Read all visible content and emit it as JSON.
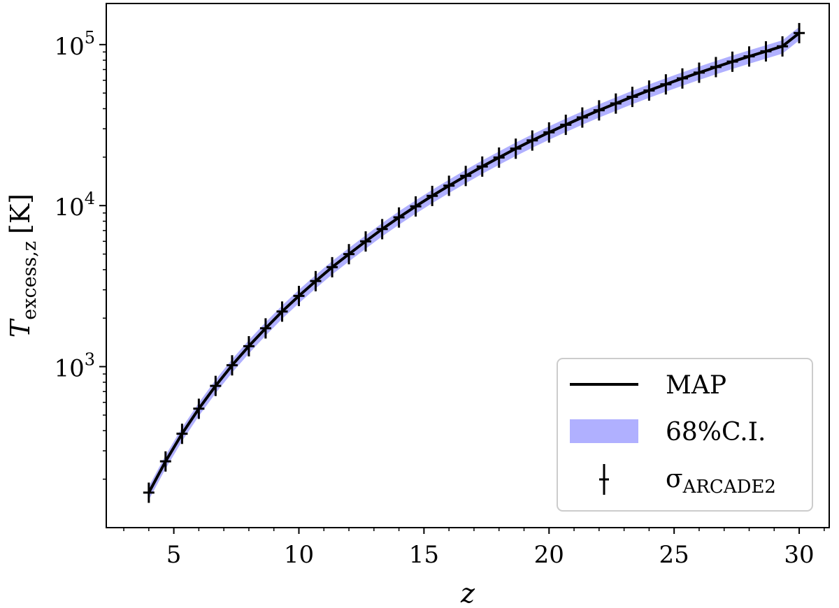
{
  "chart_data": {
    "type": "line",
    "xlabel": "z",
    "ylabel": {
      "main": "T",
      "subscript": "excess,z",
      "unit": "[K]"
    },
    "xlim": [
      2.3,
      31.2
    ],
    "ylim": [
      100,
      180000
    ],
    "yscale": "log",
    "x_ticks": [
      {
        "value": 5,
        "label": "5"
      },
      {
        "value": 10,
        "label": "10"
      },
      {
        "value": 15,
        "label": "15"
      },
      {
        "value": 20,
        "label": "20"
      },
      {
        "value": 25,
        "label": "25"
      },
      {
        "value": 30,
        "label": "30"
      }
    ],
    "y_ticks": [
      {
        "value": 1000,
        "base": "10",
        "exp": "3"
      },
      {
        "value": 10000,
        "base": "10",
        "exp": "4"
      },
      {
        "value": 100000,
        "base": "10",
        "exp": "5"
      }
    ],
    "x": [
      4.0,
      4.67,
      5.33,
      6.0,
      6.67,
      7.33,
      8.0,
      8.67,
      9.33,
      10.0,
      10.67,
      11.33,
      12.0,
      12.67,
      13.33,
      14.0,
      14.67,
      15.33,
      16.0,
      16.67,
      17.33,
      18.0,
      18.67,
      19.33,
      20.0,
      20.67,
      21.33,
      22.0,
      22.67,
      23.33,
      24.0,
      24.67,
      25.33,
      26.0,
      26.67,
      27.33,
      28.0,
      28.67,
      29.33,
      30.0
    ],
    "series": [
      {
        "name": "MAP",
        "color": "#000000",
        "values": [
          165,
          258,
          383,
          548,
          760,
          1020,
          1340,
          1730,
          2200,
          2750,
          3400,
          4150,
          5000,
          6000,
          7150,
          8450,
          9900,
          11500,
          13300,
          15300,
          17500,
          19900,
          22600,
          25400,
          28500,
          31800,
          35300,
          39100,
          43100,
          47400,
          51900,
          56700,
          61700,
          67000,
          72600,
          78400,
          84500,
          90900,
          97600,
          118000
        ]
      }
    ],
    "band": {
      "name": "68%C.I.",
      "color": "#b0b0ff",
      "lower_factor": 0.9,
      "upper_factor": 1.09
    },
    "errorbars": {
      "name": "σ",
      "name_subscript": "ARCADE2",
      "color": "#000000",
      "rel_error": 0.055
    },
    "legend": {
      "position": "lower-right",
      "entries": [
        {
          "label": "MAP"
        },
        {
          "label": "68%C.I."
        },
        {
          "label": "σ",
          "subscript": "ARCADE2"
        }
      ]
    },
    "grid": false
  }
}
